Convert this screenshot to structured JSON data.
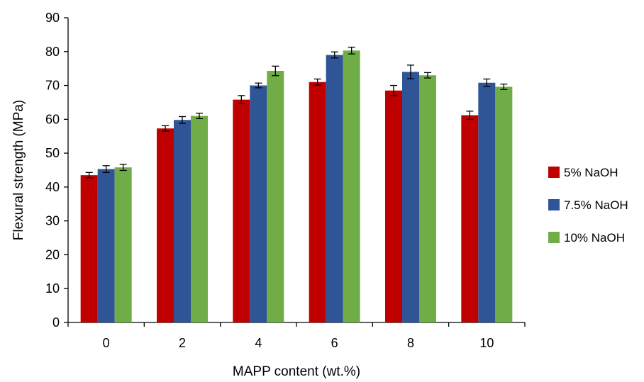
{
  "chart_data": {
    "type": "bar",
    "title": "",
    "xlabel": "MAPP content (wt.%)",
    "ylabel": "Flexural strength (MPa)",
    "ylim": [
      0,
      90
    ],
    "yticks": [
      0,
      10,
      20,
      30,
      40,
      50,
      60,
      70,
      80,
      90
    ],
    "categories": [
      "0",
      "2",
      "4",
      "6",
      "8",
      "10"
    ],
    "grid": false,
    "legend_position": "right",
    "series": [
      {
        "name": "5% NaOH",
        "color": "#C00000",
        "values": [
          43.5,
          57.3,
          65.8,
          71.0,
          68.5,
          61.2
        ],
        "errors": [
          0.8,
          0.8,
          1.2,
          0.9,
          1.5,
          1.2
        ]
      },
      {
        "name": "7.5% NaOH",
        "color": "#2F5597",
        "values": [
          45.3,
          59.8,
          70.0,
          79.0,
          74.0,
          70.8
        ],
        "errors": [
          1.0,
          1.0,
          0.7,
          0.9,
          2.0,
          1.1
        ]
      },
      {
        "name": "10% NaOH",
        "color": "#70AD47",
        "values": [
          45.8,
          61.0,
          74.3,
          80.3,
          73.0,
          69.6
        ],
        "errors": [
          0.9,
          0.8,
          1.4,
          1.0,
          0.8,
          0.8
        ]
      }
    ]
  }
}
